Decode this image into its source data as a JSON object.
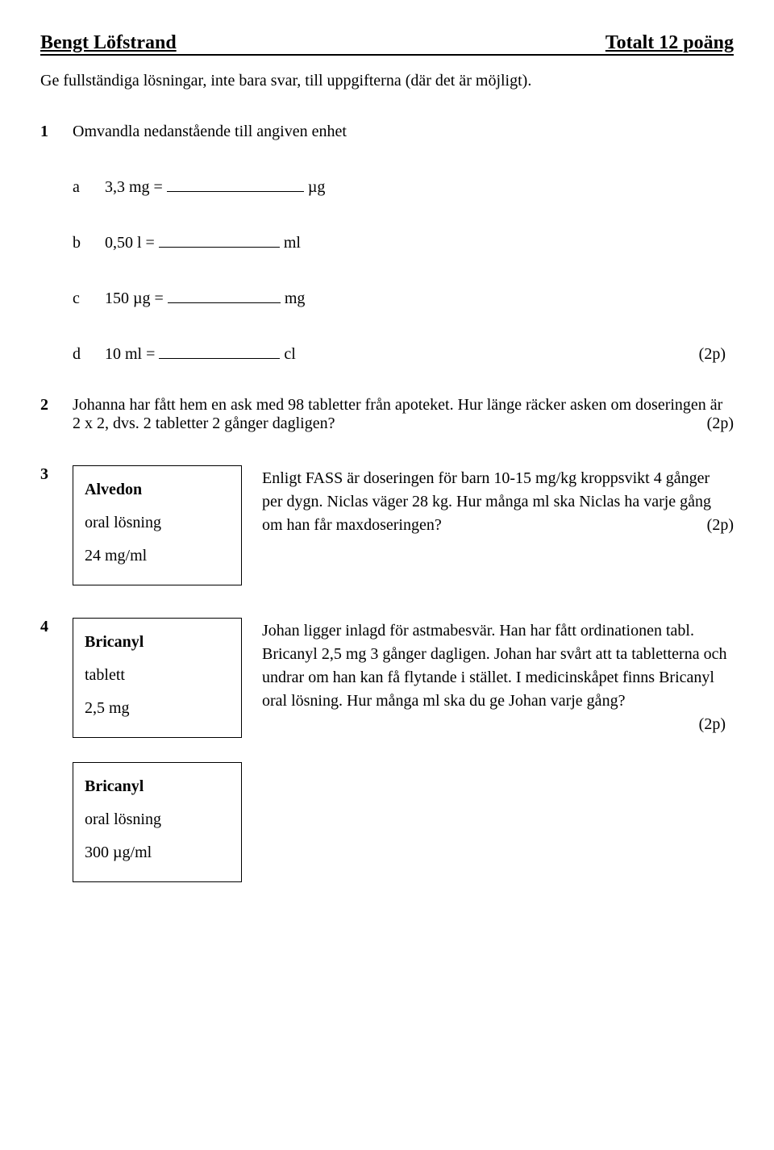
{
  "header": {
    "author": "Bengt Löfstrand",
    "total": "Totalt  12 poäng"
  },
  "instruction": "Ge fullständiga lösningar, inte bara svar, till uppgifterna (där det är möjligt).",
  "q1": {
    "num": "1",
    "title": "Omvandla nedanstående till angiven enhet",
    "a_label": "a",
    "a_text_before": "3,3 mg = ",
    "a_text_after": " µg",
    "b_label": "b",
    "b_text_before": "0,50 l = ",
    "b_text_after": " ml",
    "c_label": "c",
    "c_text_before": "150 µg = ",
    "c_text_after": " mg",
    "d_label": "d",
    "d_text_before": "10 ml = ",
    "d_text_after": " cl",
    "d_points": "(2p)"
  },
  "q2": {
    "num": "2",
    "text": "Johanna har fått hem en ask med 98 tabletter från apoteket. Hur länge räcker asken om doseringen är 2 x 2, dvs. 2 tabletter 2 gånger dagligen?",
    "points": "(2p)"
  },
  "q3": {
    "num": "3",
    "box_title": "Alvedon",
    "box_line1": "oral lösning",
    "box_line2": "24 mg/ml",
    "text": "Enligt FASS är doseringen för barn 10-15 mg/kg kroppsvikt 4 gånger per dygn. Niclas väger 28 kg. Hur många ml ska Niclas ha varje gång om han får maxdoseringen?",
    "points": "(2p)"
  },
  "q4": {
    "num": "4",
    "box1_title": "Bricanyl",
    "box1_line1": "tablett",
    "box1_line2": "2,5 mg",
    "box2_title": "Bricanyl",
    "box2_line1": "oral lösning",
    "box2_line2": "300 µg/ml",
    "text": "Johan ligger inlagd för astmabesvär. Han har fått ordinationen tabl. Bricanyl 2,5 mg 3 gånger dagligen. Johan har svårt att ta tabletterna och undrar om han kan få flytande i stället. I medicinskåpet finns Bricanyl oral lösning. Hur många ml ska du ge Johan varje gång?",
    "points": "(2p)"
  }
}
